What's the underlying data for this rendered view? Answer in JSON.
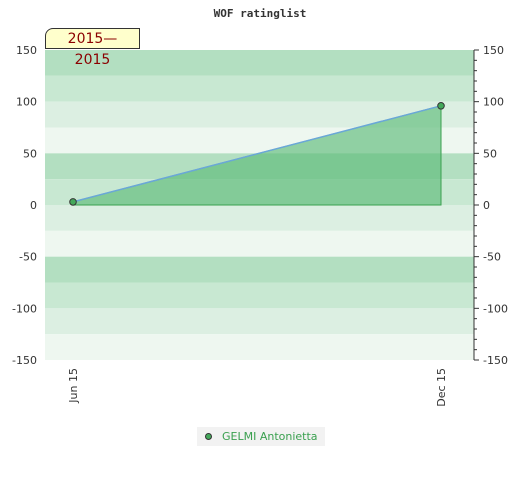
{
  "chart_data": {
    "type": "area",
    "title": "WOF ratinglist",
    "period_label": "2015—2015",
    "x_categories": [
      "Jun 15",
      "Dec 15"
    ],
    "series": [
      {
        "name": "GELMI Antonietta",
        "x": [
          "Jun 15",
          "Dec 15"
        ],
        "values": [
          3,
          96
        ]
      }
    ],
    "ylim": [
      -150,
      150
    ],
    "yticks": [
      -150,
      -100,
      -50,
      0,
      50,
      100,
      150
    ],
    "y_axis_both_sides": true,
    "legend_position": "bottom-center",
    "colors": {
      "band_dark": "#b3dfc1",
      "band_mid": "#c8e8d2",
      "band_light": "#dcefe2",
      "band_pale": "#eef7f0",
      "fill": "#5dbb7a",
      "line": "#6aa7d8",
      "marker": "#43a85a"
    }
  }
}
